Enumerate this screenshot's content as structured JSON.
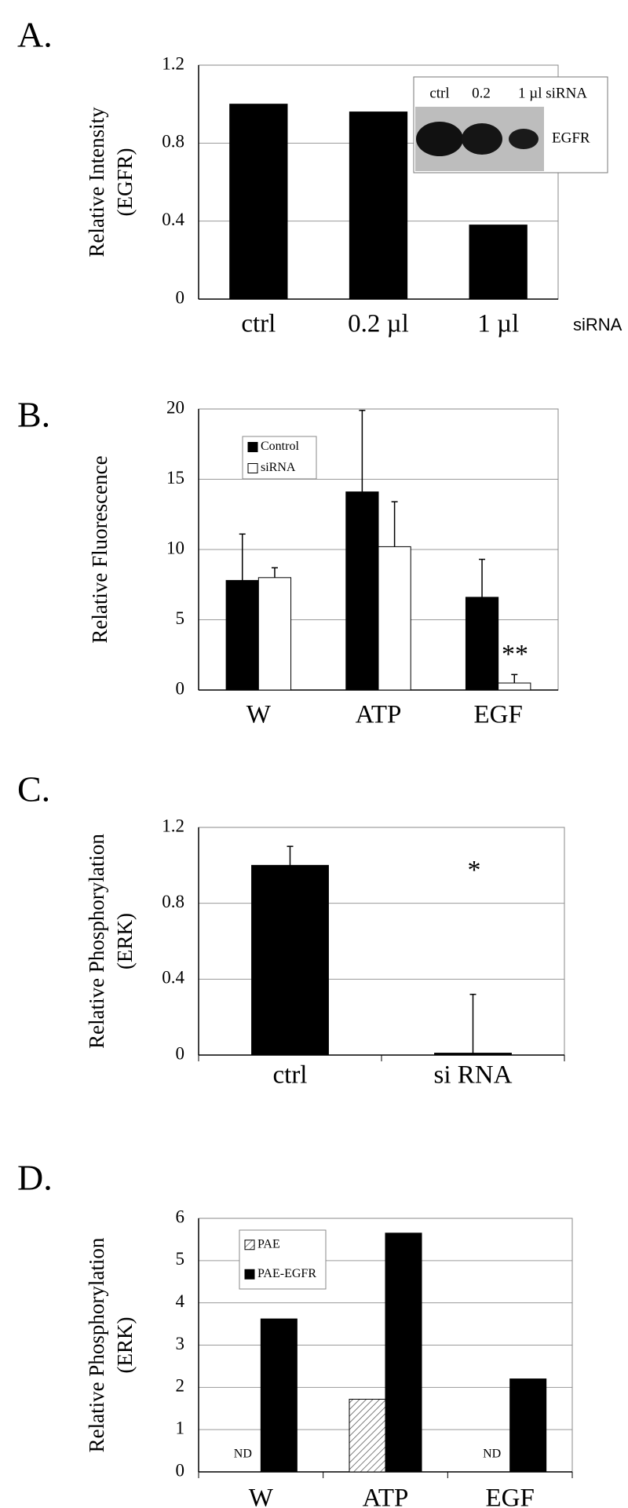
{
  "chart_data": [
    {
      "type": "bar",
      "panel_label": "A.",
      "y_label": [
        "Relative Intensity",
        "(EGFR)"
      ],
      "categories": [
        "ctrl",
        "0.2 µl",
        "1 µl"
      ],
      "x_label": "siRNA",
      "series": [
        {
          "name": null,
          "color": "#000000",
          "values": [
            1.0,
            0.96,
            0.38
          ]
        }
      ],
      "ylim": [
        0,
        1.2
      ],
      "yticks": [
        0,
        0.4,
        0.8,
        1.2
      ],
      "grid": true,
      "inset": {
        "lanes": [
          "ctrl",
          "0.2",
          "1 µl siRNA"
        ],
        "band_label": "EGFR"
      }
    },
    {
      "type": "bar",
      "panel_label": "B.",
      "y_label": [
        "Relative Fluorescence"
      ],
      "categories": [
        "W",
        "ATP",
        "EGF"
      ],
      "series": [
        {
          "name": "Control",
          "color": "#000000",
          "values": [
            7.8,
            14.1,
            6.6
          ],
          "errors": [
            3.3,
            5.8,
            2.7
          ]
        },
        {
          "name": "siRNA",
          "color": "#ffffff",
          "values": [
            8.0,
            10.2,
            0.5
          ],
          "errors": [
            0.7,
            3.2,
            0.6
          ]
        }
      ],
      "ylim": [
        0,
        20
      ],
      "yticks": [
        0,
        5,
        10,
        15,
        20
      ],
      "grid": true,
      "legend": "upper-left",
      "annotations": [
        "**"
      ]
    },
    {
      "type": "bar",
      "panel_label": "C.",
      "y_label": [
        "Relative Phosphorylation",
        "(ERK)"
      ],
      "categories": [
        "ctrl",
        "si RNA"
      ],
      "series": [
        {
          "name": null,
          "color": "#000000",
          "values": [
            1.0,
            0.01
          ],
          "errors": [
            0.1,
            0.31
          ]
        }
      ],
      "ylim": [
        0,
        1.2
      ],
      "yticks": [
        0,
        0.4,
        0.8,
        1.2
      ],
      "grid": true,
      "annotations": [
        "*"
      ]
    },
    {
      "type": "bar",
      "panel_label": "D.",
      "y_label": [
        "Relative Phosphorylation",
        "(ERK)"
      ],
      "categories": [
        "W",
        "ATP",
        "EGF"
      ],
      "series": [
        {
          "name": "PAE",
          "color": "#ffffff",
          "hatch": true,
          "values": [
            null,
            1.72,
            null
          ]
        },
        {
          "name": "PAE-EGFR",
          "color": "#000000",
          "values": [
            3.62,
            5.65,
            2.2
          ]
        }
      ],
      "ylim": [
        0,
        6
      ],
      "yticks": [
        0,
        1,
        2,
        3,
        4,
        5,
        6
      ],
      "grid": true,
      "legend": "upper-left",
      "annotations": [
        "ND",
        "ND"
      ]
    }
  ]
}
